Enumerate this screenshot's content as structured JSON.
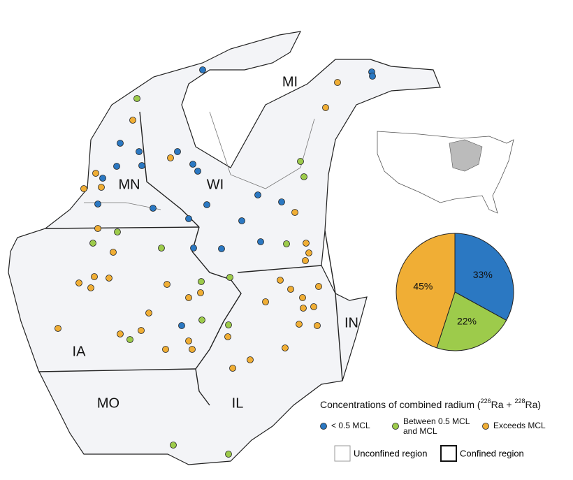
{
  "map": {
    "state_labels": [
      "MN",
      "WI",
      "MI",
      "IA",
      "MO",
      "IL",
      "IN"
    ]
  },
  "legend": {
    "title": [
      "Concentrations of combined radium (",
      "226",
      "Ra + ",
      "228",
      "Ra)"
    ],
    "regions": [
      "Unconfined region",
      "Confined region"
    ]
  },
  "chart_data": {
    "type": "pie",
    "categories": [
      "< 0.5 MCL",
      "Between 0.5 MCL and MCL",
      "Exceeds MCL"
    ],
    "values": [
      33,
      22,
      45
    ],
    "value_labels": [
      "33%",
      "22%",
      "45%"
    ],
    "colors": [
      "#2b78c2",
      "#9dcb4b",
      "#f0ae35"
    ]
  }
}
